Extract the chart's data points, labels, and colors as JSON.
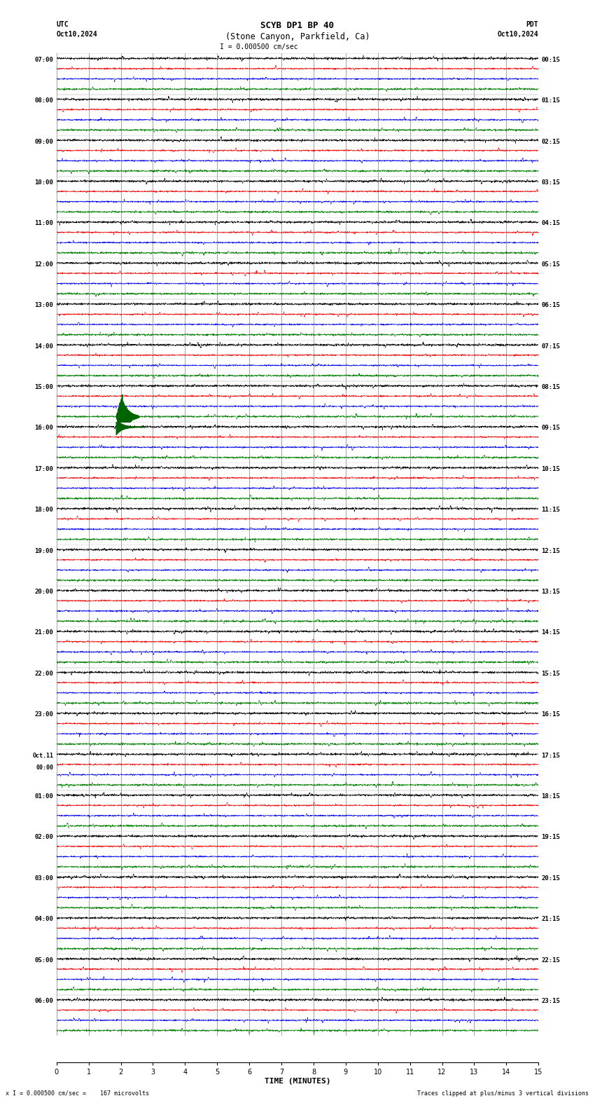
{
  "title_line1": "SCYB DP1 BP 40",
  "title_line2": "(Stone Canyon, Parkfield, Ca)",
  "scale_label": "I = 0.000500 cm/sec",
  "utc_label": "UTC",
  "pdt_label": "PDT",
  "date_left": "Oct10,2024",
  "date_right": "Oct10,2024",
  "bottom_left": "x I = 0.000500 cm/sec =    167 microvolts",
  "bottom_right": "Traces clipped at plus/minus 3 vertical divisions",
  "xlabel": "TIME (MINUTES)",
  "time_minutes": 15,
  "num_rows": 24,
  "colors": [
    "#000000",
    "#ff0000",
    "#0000ff",
    "#008000"
  ],
  "left_times": [
    "07:00",
    "08:00",
    "09:00",
    "10:00",
    "11:00",
    "12:00",
    "13:00",
    "14:00",
    "15:00",
    "16:00",
    "17:00",
    "18:00",
    "19:00",
    "20:00",
    "21:00",
    "22:00",
    "23:00",
    "Oct.11\n00:00",
    "01:00",
    "02:00",
    "03:00",
    "04:00",
    "05:00",
    "06:00"
  ],
  "right_times": [
    "00:15",
    "01:15",
    "02:15",
    "03:15",
    "04:15",
    "05:15",
    "06:15",
    "07:15",
    "08:15",
    "09:15",
    "10:15",
    "11:15",
    "12:15",
    "13:15",
    "14:15",
    "15:15",
    "16:15",
    "17:15",
    "18:15",
    "19:15",
    "20:15",
    "21:15",
    "22:15",
    "23:15"
  ],
  "bg_color": "#ffffff",
  "trace_color_black": "#000000",
  "trace_color_red": "#ff0000",
  "trace_color_blue": "#0000ff",
  "trace_color_green": "#008000",
  "noise_amplitude": 0.08,
  "big_event_color": "#006400",
  "grid_color": "#808080",
  "fig_width": 8.5,
  "fig_height": 15.84,
  "dpi": 100
}
